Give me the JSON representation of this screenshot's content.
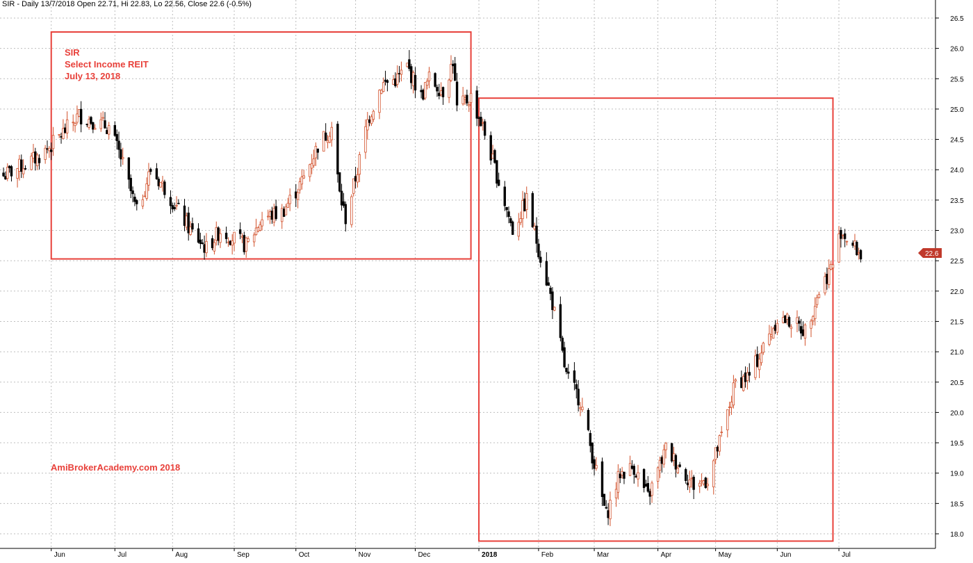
{
  "header": "SIR - Daily 13/7/2018 Open 22.71, Hi 22.83, Lo 22.56, Close 22.6 (-0.5%)",
  "annotations": {
    "ticker": "SIR",
    "name": "Select Income REIT",
    "date": "July 13, 2018",
    "watermark": "AmiBrokerAcademy.com  2018"
  },
  "last_price_label": "22.6",
  "colors": {
    "up": "#d2502a",
    "down": "#000000",
    "box": "#e8403a",
    "grid": "#bdbdbd",
    "price_tag": "#c0392b"
  },
  "chart_data": {
    "type": "candlestick",
    "y_ticks": [
      "18.0",
      "18.5",
      "19.0",
      "19.5",
      "20.0",
      "20.5",
      "21.0",
      "21.5",
      "22.0",
      "22.5",
      "23.0",
      "23.5",
      "24.0",
      "24.5",
      "25.0",
      "25.5",
      "26.0",
      "26.5"
    ],
    "ylim": [
      17.75,
      26.6
    ],
    "x_ticks": [
      "Jun",
      "Jul",
      "Aug",
      "Sep",
      "Oct",
      "Nov",
      "Dec",
      "2018",
      "Feb",
      "Mar",
      "Apr",
      "May",
      "Jun",
      "Jul"
    ],
    "boxes": [
      {
        "from": "2017-06-01",
        "to": "2017-12-29",
        "low": 22.53,
        "high": 26.27
      },
      {
        "from": "2018-01-02",
        "to": "2018-06-29",
        "low": 17.88,
        "high": 25.18
      }
    ],
    "anchor_prices": [
      [
        "2017-05-08",
        23.9
      ],
      [
        "2017-05-25",
        24.2
      ],
      [
        "2017-06-01",
        24.4
      ],
      [
        "2017-06-15",
        24.9
      ],
      [
        "2017-06-30",
        24.7
      ],
      [
        "2017-07-06",
        24.2
      ],
      [
        "2017-07-14",
        23.3
      ],
      [
        "2017-07-21",
        24.0
      ],
      [
        "2017-07-28",
        23.7
      ],
      [
        "2017-08-10",
        23.0
      ],
      [
        "2017-08-18",
        22.7
      ],
      [
        "2017-08-25",
        23.0
      ],
      [
        "2017-09-07",
        22.75
      ],
      [
        "2017-09-15",
        23.2
      ],
      [
        "2017-09-25",
        23.3
      ],
      [
        "2017-10-05",
        23.8
      ],
      [
        "2017-10-13",
        24.4
      ],
      [
        "2017-10-20",
        24.7
      ],
      [
        "2017-10-24",
        23.6
      ],
      [
        "2017-10-27",
        23.2
      ],
      [
        "2017-11-02",
        24.0
      ],
      [
        "2017-11-07",
        24.8
      ],
      [
        "2017-11-14",
        25.4
      ],
      [
        "2017-11-22",
        25.5
      ],
      [
        "2017-11-27",
        25.7
      ],
      [
        "2017-12-04",
        25.2
      ],
      [
        "2017-12-08",
        25.5
      ],
      [
        "2017-12-15",
        25.3
      ],
      [
        "2017-12-20",
        25.8
      ],
      [
        "2017-12-22",
        25.0
      ],
      [
        "2017-12-29",
        25.2
      ],
      [
        "2018-01-04",
        24.7
      ],
      [
        "2018-01-12",
        23.8
      ],
      [
        "2018-01-19",
        23.0
      ],
      [
        "2018-01-26",
        23.5
      ],
      [
        "2018-02-01",
        22.7
      ],
      [
        "2018-02-08",
        21.8
      ],
      [
        "2018-02-15",
        20.6
      ],
      [
        "2018-02-22",
        20.2
      ],
      [
        "2018-02-28",
        19.3
      ],
      [
        "2018-03-07",
        18.3
      ],
      [
        "2018-03-14",
        19.0
      ],
      [
        "2018-03-21",
        19.1
      ],
      [
        "2018-03-28",
        18.6
      ],
      [
        "2018-04-06",
        19.4
      ],
      [
        "2018-04-13",
        19.1
      ],
      [
        "2018-04-20",
        18.8
      ],
      [
        "2018-04-27",
        18.9
      ],
      [
        "2018-05-04",
        19.6
      ],
      [
        "2018-05-11",
        20.5
      ],
      [
        "2018-05-18",
        20.6
      ],
      [
        "2018-05-24",
        21.0
      ],
      [
        "2018-06-01",
        21.55
      ],
      [
        "2018-06-08",
        21.5
      ],
      [
        "2018-06-15",
        21.35
      ],
      [
        "2018-06-22",
        22.0
      ],
      [
        "2018-06-29",
        22.45
      ],
      [
        "2018-07-03",
        23.0
      ],
      [
        "2018-07-09",
        22.75
      ],
      [
        "2018-07-13",
        22.6
      ]
    ]
  }
}
